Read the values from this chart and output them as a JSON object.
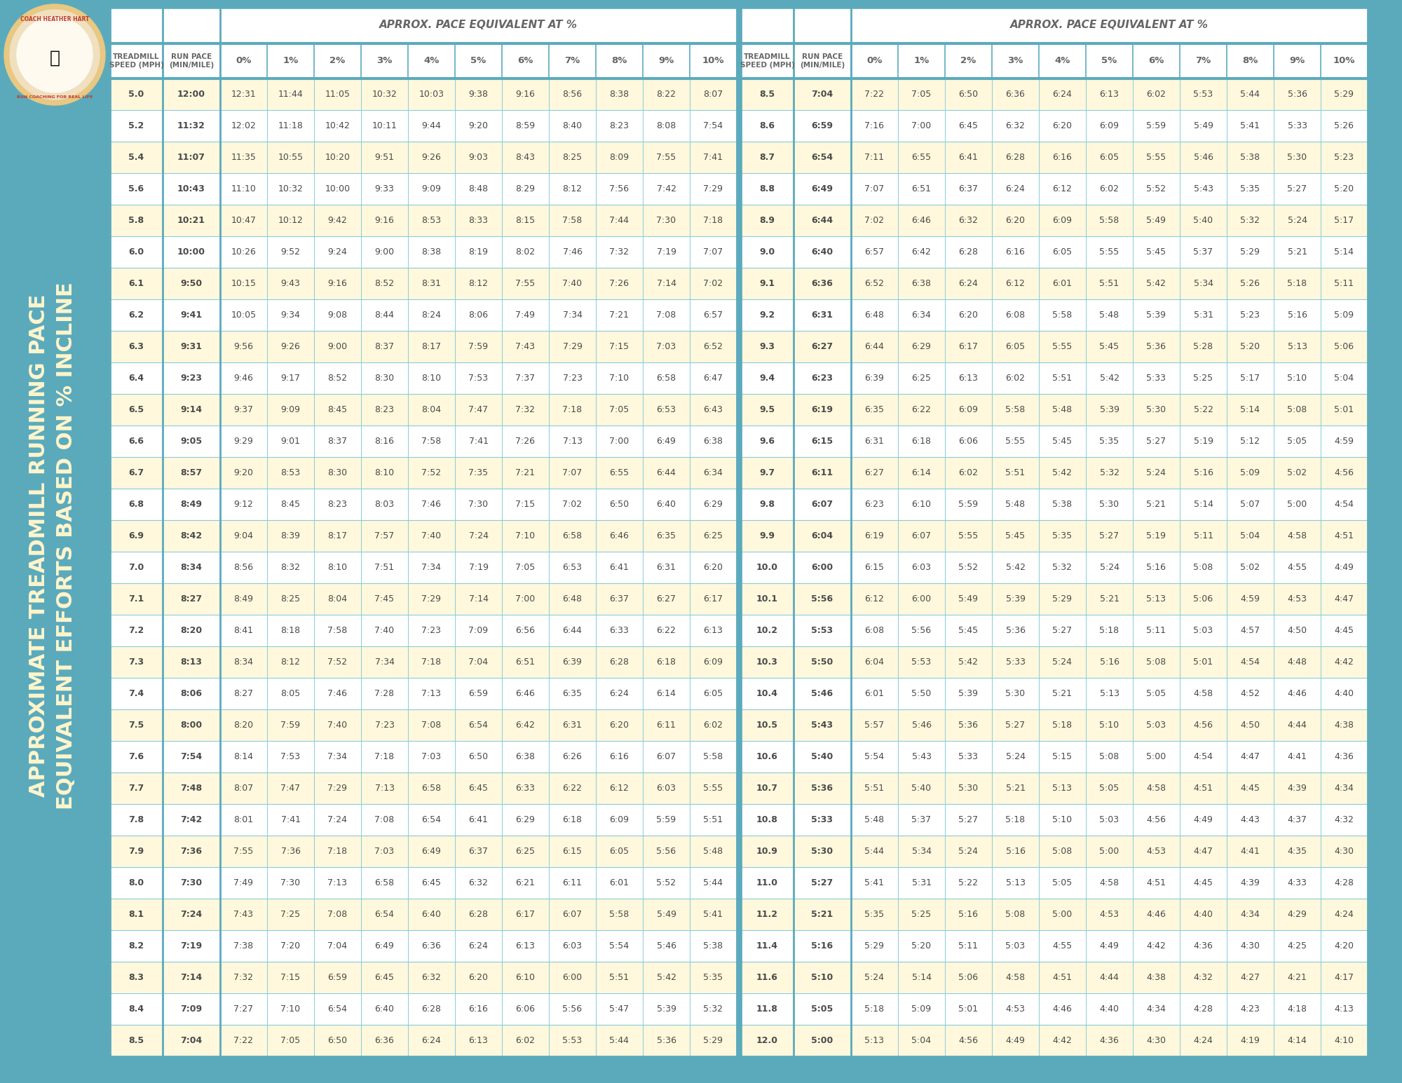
{
  "bg_color": "#5BAABC",
  "row_odd_bg": "#FFF8DC",
  "row_even_bg": "#FFFFFF",
  "header_bg": "#FFFFFF",
  "border_color": "#88CCDA",
  "cell_text_color": "#4A4A4A",
  "header_text_color": "#666666",
  "side_text_color": "#FFF5CC",
  "incline_header_text": "APRROX. PACE EQUIVALENT AT %",
  "col1_header": "TREADMILL\nSPEED (MPH)",
  "col2_header": "RUN PACE\n(MIN/MILE)",
  "incline_labels": [
    "0%",
    "1%",
    "2%",
    "3%",
    "4%",
    "5%",
    "6%",
    "7%",
    "8%",
    "9%",
    "10%"
  ],
  "side_text_line1": "APPROXIMATE TREADMILL RUNNING PACE",
  "side_text_line2": "EQUIVALENT EFFORTS BASED ON % INCLINE",
  "left_table": {
    "speeds": [
      "5.0",
      "5.2",
      "5.4",
      "5.6",
      "5.8",
      "6.0",
      "6.1",
      "6.2",
      "6.3",
      "6.4",
      "6.5",
      "6.6",
      "6.7",
      "6.8",
      "6.9",
      "7.0",
      "7.1",
      "7.2",
      "7.3",
      "7.4",
      "7.5",
      "7.6",
      "7.7",
      "7.8",
      "7.9",
      "8.0",
      "8.1",
      "8.2",
      "8.3",
      "8.4",
      "8.5"
    ],
    "run_pace": [
      "12:00",
      "11:32",
      "11:07",
      "10:43",
      "10:21",
      "10:00",
      "9:50",
      "9:41",
      "9:31",
      "9:23",
      "9:14",
      "9:05",
      "8:57",
      "8:49",
      "8:42",
      "8:34",
      "8:27",
      "8:20",
      "8:13",
      "8:06",
      "8:00",
      "7:54",
      "7:48",
      "7:42",
      "7:36",
      "7:30",
      "7:24",
      "7:19",
      "7:14",
      "7:09",
      "7:04"
    ],
    "paces": [
      [
        "12:31",
        "11:44",
        "11:05",
        "10:32",
        "10:03",
        "9:38",
        "9:16",
        "8:56",
        "8:38",
        "8:22",
        "8:07"
      ],
      [
        "12:02",
        "11:18",
        "10:42",
        "10:11",
        "9:44",
        "9:20",
        "8:59",
        "8:40",
        "8:23",
        "8:08",
        "7:54"
      ],
      [
        "11:35",
        "10:55",
        "10:20",
        "9:51",
        "9:26",
        "9:03",
        "8:43",
        "8:25",
        "8:09",
        "7:55",
        "7:41"
      ],
      [
        "11:10",
        "10:32",
        "10:00",
        "9:33",
        "9:09",
        "8:48",
        "8:29",
        "8:12",
        "7:56",
        "7:42",
        "7:29"
      ],
      [
        "10:47",
        "10:12",
        "9:42",
        "9:16",
        "8:53",
        "8:33",
        "8:15",
        "7:58",
        "7:44",
        "7:30",
        "7:18"
      ],
      [
        "10:26",
        "9:52",
        "9:24",
        "9:00",
        "8:38",
        "8:19",
        "8:02",
        "7:46",
        "7:32",
        "7:19",
        "7:07"
      ],
      [
        "10:15",
        "9:43",
        "9:16",
        "8:52",
        "8:31",
        "8:12",
        "7:55",
        "7:40",
        "7:26",
        "7:14",
        "7:02"
      ],
      [
        "10:05",
        "9:34",
        "9:08",
        "8:44",
        "8:24",
        "8:06",
        "7:49",
        "7:34",
        "7:21",
        "7:08",
        "6:57"
      ],
      [
        "9:56",
        "9:26",
        "9:00",
        "8:37",
        "8:17",
        "7:59",
        "7:43",
        "7:29",
        "7:15",
        "7:03",
        "6:52"
      ],
      [
        "9:46",
        "9:17",
        "8:52",
        "8:30",
        "8:10",
        "7:53",
        "7:37",
        "7:23",
        "7:10",
        "6:58",
        "6:47"
      ],
      [
        "9:37",
        "9:09",
        "8:45",
        "8:23",
        "8:04",
        "7:47",
        "7:32",
        "7:18",
        "7:05",
        "6:53",
        "6:43"
      ],
      [
        "9:29",
        "9:01",
        "8:37",
        "8:16",
        "7:58",
        "7:41",
        "7:26",
        "7:13",
        "7:00",
        "6:49",
        "6:38"
      ],
      [
        "9:20",
        "8:53",
        "8:30",
        "8:10",
        "7:52",
        "7:35",
        "7:21",
        "7:07",
        "6:55",
        "6:44",
        "6:34"
      ],
      [
        "9:12",
        "8:45",
        "8:23",
        "8:03",
        "7:46",
        "7:30",
        "7:15",
        "7:02",
        "6:50",
        "6:40",
        "6:29"
      ],
      [
        "9:04",
        "8:39",
        "8:17",
        "7:57",
        "7:40",
        "7:24",
        "7:10",
        "6:58",
        "6:46",
        "6:35",
        "6:25"
      ],
      [
        "8:56",
        "8:32",
        "8:10",
        "7:51",
        "7:34",
        "7:19",
        "7:05",
        "6:53",
        "6:41",
        "6:31",
        "6:20"
      ],
      [
        "8:49",
        "8:25",
        "8:04",
        "7:45",
        "7:29",
        "7:14",
        "7:00",
        "6:48",
        "6:37",
        "6:27",
        "6:17"
      ],
      [
        "8:41",
        "8:18",
        "7:58",
        "7:40",
        "7:23",
        "7:09",
        "6:56",
        "6:44",
        "6:33",
        "6:22",
        "6:13"
      ],
      [
        "8:34",
        "8:12",
        "7:52",
        "7:34",
        "7:18",
        "7:04",
        "6:51",
        "6:39",
        "6:28",
        "6:18",
        "6:09"
      ],
      [
        "8:27",
        "8:05",
        "7:46",
        "7:28",
        "7:13",
        "6:59",
        "6:46",
        "6:35",
        "6:24",
        "6:14",
        "6:05"
      ],
      [
        "8:20",
        "7:59",
        "7:40",
        "7:23",
        "7:08",
        "6:54",
        "6:42",
        "6:31",
        "6:20",
        "6:11",
        "6:02"
      ],
      [
        "8:14",
        "7:53",
        "7:34",
        "7:18",
        "7:03",
        "6:50",
        "6:38",
        "6:26",
        "6:16",
        "6:07",
        "5:58"
      ],
      [
        "8:07",
        "7:47",
        "7:29",
        "7:13",
        "6:58",
        "6:45",
        "6:33",
        "6:22",
        "6:12",
        "6:03",
        "5:55"
      ],
      [
        "8:01",
        "7:41",
        "7:24",
        "7:08",
        "6:54",
        "6:41",
        "6:29",
        "6:18",
        "6:09",
        "5:59",
        "5:51"
      ],
      [
        "7:55",
        "7:36",
        "7:18",
        "7:03",
        "6:49",
        "6:37",
        "6:25",
        "6:15",
        "6:05",
        "5:56",
        "5:48"
      ],
      [
        "7:49",
        "7:30",
        "7:13",
        "6:58",
        "6:45",
        "6:32",
        "6:21",
        "6:11",
        "6:01",
        "5:52",
        "5:44"
      ],
      [
        "7:43",
        "7:25",
        "7:08",
        "6:54",
        "6:40",
        "6:28",
        "6:17",
        "6:07",
        "5:58",
        "5:49",
        "5:41"
      ],
      [
        "7:38",
        "7:20",
        "7:04",
        "6:49",
        "6:36",
        "6:24",
        "6:13",
        "6:03",
        "5:54",
        "5:46",
        "5:38"
      ],
      [
        "7:32",
        "7:15",
        "6:59",
        "6:45",
        "6:32",
        "6:20",
        "6:10",
        "6:00",
        "5:51",
        "5:42",
        "5:35"
      ],
      [
        "7:27",
        "7:10",
        "6:54",
        "6:40",
        "6:28",
        "6:16",
        "6:06",
        "5:56",
        "5:47",
        "5:39",
        "5:32"
      ],
      [
        "7:22",
        "7:05",
        "6:50",
        "6:36",
        "6:24",
        "6:13",
        "6:02",
        "5:53",
        "5:44",
        "5:36",
        "5:29"
      ]
    ]
  },
  "right_table": {
    "speeds": [
      "8.5",
      "8.6",
      "8.7",
      "8.8",
      "8.9",
      "9.0",
      "9.1",
      "9.2",
      "9.3",
      "9.4",
      "9.5",
      "9.6",
      "9.7",
      "9.8",
      "9.9",
      "10.0",
      "10.1",
      "10.2",
      "10.3",
      "10.4",
      "10.5",
      "10.6",
      "10.7",
      "10.8",
      "10.9",
      "11.0",
      "11.2",
      "11.4",
      "11.6",
      "11.8",
      "12.0"
    ],
    "run_pace": [
      "7:04",
      "6:59",
      "6:54",
      "6:49",
      "6:44",
      "6:40",
      "6:36",
      "6:31",
      "6:27",
      "6:23",
      "6:19",
      "6:15",
      "6:11",
      "6:07",
      "6:04",
      "6:00",
      "5:56",
      "5:53",
      "5:50",
      "5:46",
      "5:43",
      "5:40",
      "5:36",
      "5:33",
      "5:30",
      "5:27",
      "5:21",
      "5:16",
      "5:10",
      "5:05",
      "5:00"
    ],
    "paces": [
      [
        "7:22",
        "7:05",
        "6:50",
        "6:36",
        "6:24",
        "6:13",
        "6:02",
        "5:53",
        "5:44",
        "5:36",
        "5:29"
      ],
      [
        "7:16",
        "7:00",
        "6:45",
        "6:32",
        "6:20",
        "6:09",
        "5:59",
        "5:49",
        "5:41",
        "5:33",
        "5:26"
      ],
      [
        "7:11",
        "6:55",
        "6:41",
        "6:28",
        "6:16",
        "6:05",
        "5:55",
        "5:46",
        "5:38",
        "5:30",
        "5:23"
      ],
      [
        "7:07",
        "6:51",
        "6:37",
        "6:24",
        "6:12",
        "6:02",
        "5:52",
        "5:43",
        "5:35",
        "5:27",
        "5:20"
      ],
      [
        "7:02",
        "6:46",
        "6:32",
        "6:20",
        "6:09",
        "5:58",
        "5:49",
        "5:40",
        "5:32",
        "5:24",
        "5:17"
      ],
      [
        "6:57",
        "6:42",
        "6:28",
        "6:16",
        "6:05",
        "5:55",
        "5:45",
        "5:37",
        "5:29",
        "5:21",
        "5:14"
      ],
      [
        "6:52",
        "6:38",
        "6:24",
        "6:12",
        "6:01",
        "5:51",
        "5:42",
        "5:34",
        "5:26",
        "5:18",
        "5:11"
      ],
      [
        "6:48",
        "6:34",
        "6:20",
        "6:08",
        "5:58",
        "5:48",
        "5:39",
        "5:31",
        "5:23",
        "5:16",
        "5:09"
      ],
      [
        "6:44",
        "6:29",
        "6:17",
        "6:05",
        "5:55",
        "5:45",
        "5:36",
        "5:28",
        "5:20",
        "5:13",
        "5:06"
      ],
      [
        "6:39",
        "6:25",
        "6:13",
        "6:02",
        "5:51",
        "5:42",
        "5:33",
        "5:25",
        "5:17",
        "5:10",
        "5:04"
      ],
      [
        "6:35",
        "6:22",
        "6:09",
        "5:58",
        "5:48",
        "5:39",
        "5:30",
        "5:22",
        "5:14",
        "5:08",
        "5:01"
      ],
      [
        "6:31",
        "6:18",
        "6:06",
        "5:55",
        "5:45",
        "5:35",
        "5:27",
        "5:19",
        "5:12",
        "5:05",
        "4:59"
      ],
      [
        "6:27",
        "6:14",
        "6:02",
        "5:51",
        "5:42",
        "5:32",
        "5:24",
        "5:16",
        "5:09",
        "5:02",
        "4:56"
      ],
      [
        "6:23",
        "6:10",
        "5:59",
        "5:48",
        "5:38",
        "5:30",
        "5:21",
        "5:14",
        "5:07",
        "5:00",
        "4:54"
      ],
      [
        "6:19",
        "6:07",
        "5:55",
        "5:45",
        "5:35",
        "5:27",
        "5:19",
        "5:11",
        "5:04",
        "4:58",
        "4:51"
      ],
      [
        "6:15",
        "6:03",
        "5:52",
        "5:42",
        "5:32",
        "5:24",
        "5:16",
        "5:08",
        "5:02",
        "4:55",
        "4:49"
      ],
      [
        "6:12",
        "6:00",
        "5:49",
        "5:39",
        "5:29",
        "5:21",
        "5:13",
        "5:06",
        "4:59",
        "4:53",
        "4:47"
      ],
      [
        "6:08",
        "5:56",
        "5:45",
        "5:36",
        "5:27",
        "5:18",
        "5:11",
        "5:03",
        "4:57",
        "4:50",
        "4:45"
      ],
      [
        "6:04",
        "5:53",
        "5:42",
        "5:33",
        "5:24",
        "5:16",
        "5:08",
        "5:01",
        "4:54",
        "4:48",
        "4:42"
      ],
      [
        "6:01",
        "5:50",
        "5:39",
        "5:30",
        "5:21",
        "5:13",
        "5:05",
        "4:58",
        "4:52",
        "4:46",
        "4:40"
      ],
      [
        "5:57",
        "5:46",
        "5:36",
        "5:27",
        "5:18",
        "5:10",
        "5:03",
        "4:56",
        "4:50",
        "4:44",
        "4:38"
      ],
      [
        "5:54",
        "5:43",
        "5:33",
        "5:24",
        "5:15",
        "5:08",
        "5:00",
        "4:54",
        "4:47",
        "4:41",
        "4:36"
      ],
      [
        "5:51",
        "5:40",
        "5:30",
        "5:21",
        "5:13",
        "5:05",
        "4:58",
        "4:51",
        "4:45",
        "4:39",
        "4:34"
      ],
      [
        "5:48",
        "5:37",
        "5:27",
        "5:18",
        "5:10",
        "5:03",
        "4:56",
        "4:49",
        "4:43",
        "4:37",
        "4:32"
      ],
      [
        "5:44",
        "5:34",
        "5:24",
        "5:16",
        "5:08",
        "5:00",
        "4:53",
        "4:47",
        "4:41",
        "4:35",
        "4:30"
      ],
      [
        "5:41",
        "5:31",
        "5:22",
        "5:13",
        "5:05",
        "4:58",
        "4:51",
        "4:45",
        "4:39",
        "4:33",
        "4:28"
      ],
      [
        "5:35",
        "5:25",
        "5:16",
        "5:08",
        "5:00",
        "4:53",
        "4:46",
        "4:40",
        "4:34",
        "4:29",
        "4:24"
      ],
      [
        "5:29",
        "5:20",
        "5:11",
        "5:03",
        "4:55",
        "4:49",
        "4:42",
        "4:36",
        "4:30",
        "4:25",
        "4:20"
      ],
      [
        "5:24",
        "5:14",
        "5:06",
        "4:58",
        "4:51",
        "4:44",
        "4:38",
        "4:32",
        "4:27",
        "4:21",
        "4:17"
      ],
      [
        "5:18",
        "5:09",
        "5:01",
        "4:53",
        "4:46",
        "4:40",
        "4:34",
        "4:28",
        "4:23",
        "4:18",
        "4:13"
      ],
      [
        "5:13",
        "5:04",
        "4:56",
        "4:49",
        "4:42",
        "4:36",
        "4:30",
        "4:24",
        "4:19",
        "4:14",
        "4:10"
      ]
    ]
  }
}
